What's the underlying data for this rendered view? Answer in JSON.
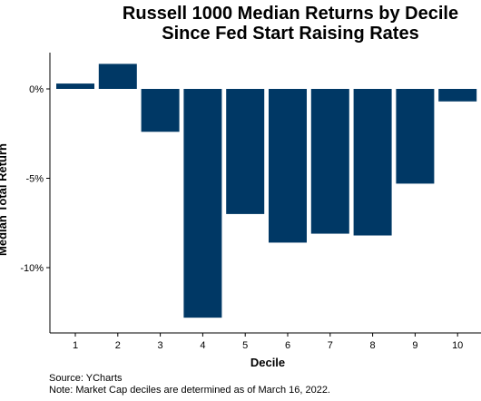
{
  "chart_data": {
    "type": "bar",
    "title": "Russell 1000 Median Returns by Decile",
    "subtitle": "Since Fed Start Raising Rates",
    "xlabel": "Decile",
    "ylabel": "Median Total Return",
    "categories": [
      "1",
      "2",
      "3",
      "4",
      "5",
      "6",
      "7",
      "8",
      "9",
      "10"
    ],
    "values": [
      0.3,
      1.4,
      -2.4,
      -12.8,
      -7.0,
      -8.6,
      -8.1,
      -8.2,
      -5.3,
      -0.7
    ],
    "y_ticks": [
      0,
      -5,
      -10
    ],
    "y_tick_labels": [
      "0%",
      "-5%",
      "-10%"
    ],
    "ylim": [
      -13.6,
      2.0
    ],
    "grid": false,
    "legend": "none",
    "bar_color": "#003865"
  },
  "footer": {
    "source": "Source: YCharts",
    "note": "Note: Market Cap deciles are determined as of March 16, 2022."
  }
}
